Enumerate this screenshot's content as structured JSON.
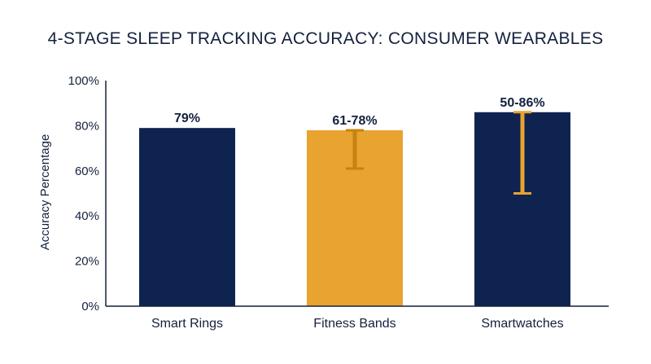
{
  "chart_data": {
    "type": "bar",
    "title": "4-STAGE SLEEP TRACKING ACCURACY: CONSUMER WEARABLES",
    "xlabel": "",
    "ylabel": "Accuracy Percentage",
    "ylim": [
      0,
      100
    ],
    "yticks": [
      "0%",
      "20%",
      "40%",
      "60%",
      "80%",
      "100%"
    ],
    "ytick_values": [
      0,
      20,
      40,
      60,
      80,
      100
    ],
    "grid": false,
    "categories": [
      "Smart Rings",
      "Fitness Bands",
      "Smartwatches"
    ],
    "values": [
      79,
      78,
      86
    ],
    "error_low": [
      null,
      61,
      50
    ],
    "error_high": [
      null,
      78,
      86
    ],
    "data_labels": [
      "79%",
      "61-78%",
      "50-86%"
    ],
    "bar_colors": [
      "#0f2350",
      "#e8a330",
      "#0f2350"
    ],
    "error_colors": [
      null,
      "#c7830f",
      "#e8a330"
    ]
  }
}
